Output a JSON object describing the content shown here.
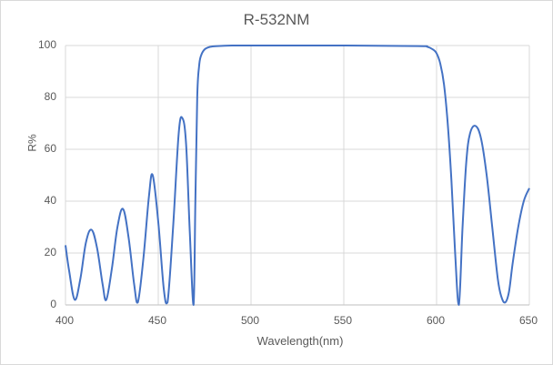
{
  "chart_data": {
    "type": "line",
    "title": "R-532NM",
    "xlabel": "Wavelength(nm)",
    "ylabel": "R%",
    "xlim": [
      400,
      650
    ],
    "ylim": [
      0,
      100
    ],
    "x_ticks": [
      "400",
      "450",
      "500",
      "550",
      "600",
      "650"
    ],
    "y_ticks": [
      "0",
      "20",
      "40",
      "60",
      "80",
      "100"
    ],
    "grid": true,
    "legend": null,
    "line_color": "#4472C4",
    "series": [
      {
        "name": "R%",
        "x": [
          400,
          402,
          405,
          408,
          411,
          414,
          417,
          420,
          422,
          425,
          428,
          431,
          434,
          437,
          439,
          442,
          445,
          447,
          450,
          453,
          455,
          458,
          461,
          463,
          465,
          467,
          469,
          470,
          471,
          472,
          473,
          475,
          478,
          482,
          490,
          500,
          550,
          590,
          595,
          598,
          600,
          602,
          604,
          606,
          608,
          610,
          612,
          614,
          616,
          618,
          621,
          624,
          627,
          630,
          633,
          635,
          637,
          639,
          641,
          644,
          647,
          650
        ],
        "y": [
          23,
          13,
          2,
          10,
          24,
          29,
          22,
          8,
          2,
          14,
          30,
          37,
          26,
          8,
          1,
          18,
          42,
          50,
          32,
          6,
          1,
          30,
          66,
          72,
          62,
          28,
          0,
          40,
          80,
          92,
          96,
          98.5,
          99.5,
          99.8,
          100,
          100,
          100,
          99.8,
          99.5,
          98.5,
          97,
          93,
          85,
          70,
          48,
          20,
          0,
          30,
          55,
          66,
          69,
          64,
          50,
          30,
          10,
          3,
          1,
          5,
          16,
          30,
          40,
          45
        ]
      }
    ]
  }
}
